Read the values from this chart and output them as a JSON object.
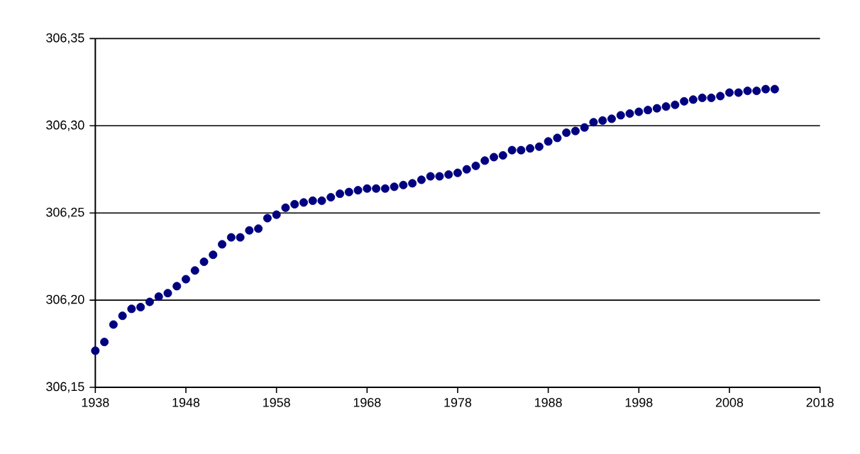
{
  "chart_data": {
    "type": "scatter",
    "grid": "y",
    "color": "#000080",
    "x": [
      1938,
      1939,
      1940,
      1941,
      1942,
      1943,
      1944,
      1945,
      1946,
      1947,
      1948,
      1949,
      1950,
      1951,
      1952,
      1953,
      1954,
      1955,
      1956,
      1957,
      1958,
      1959,
      1960,
      1961,
      1962,
      1963,
      1964,
      1965,
      1966,
      1967,
      1968,
      1969,
      1970,
      1971,
      1972,
      1973,
      1974,
      1975,
      1976,
      1977,
      1978,
      1979,
      1980,
      1981,
      1982,
      1983,
      1984,
      1985,
      1986,
      1987,
      1988,
      1989,
      1990,
      1991,
      1992,
      1993,
      1994,
      1995,
      1996,
      1997,
      1998,
      1999,
      2000,
      2001,
      2002,
      2003,
      2004,
      2005,
      2006,
      2007,
      2008,
      2009,
      2010,
      2011,
      2012,
      2013
    ],
    "values": [
      306.171,
      306.176,
      306.186,
      306.191,
      306.195,
      306.196,
      306.199,
      306.202,
      306.204,
      306.208,
      306.212,
      306.217,
      306.222,
      306.226,
      306.232,
      306.236,
      306.236,
      306.24,
      306.241,
      306.247,
      306.249,
      306.253,
      306.255,
      306.256,
      306.257,
      306.257,
      306.259,
      306.261,
      306.262,
      306.263,
      306.264,
      306.264,
      306.264,
      306.265,
      306.266,
      306.267,
      306.269,
      306.271,
      306.271,
      306.272,
      306.273,
      306.275,
      306.277,
      306.28,
      306.282,
      306.283,
      306.286,
      306.286,
      306.287,
      306.288,
      306.291,
      306.293,
      306.296,
      306.297,
      306.299,
      306.302,
      306.303,
      306.304,
      306.306,
      306.307,
      306.308,
      306.309,
      306.31,
      306.311,
      306.312,
      306.314,
      306.315,
      306.316,
      306.316,
      306.317,
      306.319,
      306.319,
      306.32,
      306.32,
      306.321,
      306.321
    ],
    "xlim": [
      1938,
      2018
    ],
    "xticks": [
      1938,
      1948,
      1958,
      1968,
      1978,
      1988,
      1998,
      2008,
      2018
    ],
    "ylim": [
      306.15,
      306.35
    ],
    "yticks": [
      {
        "value": 306.15,
        "label": "306,15"
      },
      {
        "value": 306.2,
        "label": "306,20"
      },
      {
        "value": 306.25,
        "label": "306,25"
      },
      {
        "value": 306.3,
        "label": "306,30"
      },
      {
        "value": 306.35,
        "label": "306,35"
      }
    ]
  }
}
